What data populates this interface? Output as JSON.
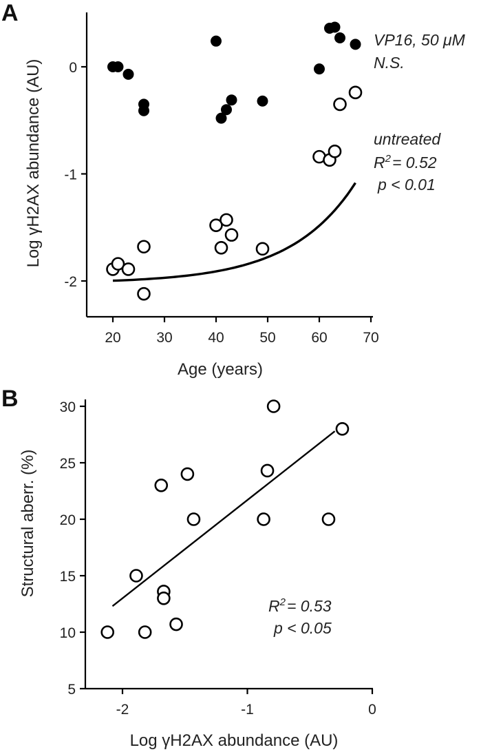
{
  "chart_data": [
    {
      "panel": "A",
      "type": "scatter",
      "xlabel": "Age (years)",
      "ylabel": "Log γH2AX abundance (AU)",
      "xlim": [
        15,
        70
      ],
      "ylim": [
        -2.35,
        0.5
      ],
      "xticks": [
        20,
        30,
        40,
        50,
        60,
        70
      ],
      "yticks": [
        0,
        -1,
        -2
      ],
      "series": [
        {
          "name": "VP16, 50 μM",
          "marker": "filled",
          "x": [
            20,
            21,
            23,
            26,
            26,
            40,
            41,
            42,
            43,
            49,
            60,
            62,
            63,
            64,
            67
          ],
          "y": [
            0.0,
            0.0,
            -0.07,
            -0.35,
            -0.41,
            0.24,
            -0.48,
            -0.4,
            -0.31,
            -0.32,
            -0.02,
            0.36,
            0.37,
            0.27,
            0.21
          ]
        },
        {
          "name": "untreated",
          "marker": "open",
          "x": [
            20,
            21,
            23,
            26,
            26,
            40,
            41,
            42,
            43,
            49,
            60,
            62,
            63,
            64,
            67
          ],
          "y": [
            -1.89,
            -1.84,
            -1.89,
            -1.68,
            -2.12,
            -1.48,
            -1.69,
            -1.43,
            -1.57,
            -1.7,
            -0.84,
            -0.87,
            -0.79,
            -0.35,
            -0.24
          ]
        }
      ],
      "fit": {
        "type": "exponential",
        "x": [
          20,
          67
        ],
        "a": -2.02,
        "b": 0.0223,
        "c": 0.0795
      },
      "annotations": {
        "vp16_label": "VP16, 50 μM",
        "vp16_sig": "N.S.",
        "untreated_label": "untreated",
        "r2": "= 0.52",
        "p": "p < 0.01"
      }
    },
    {
      "panel": "B",
      "type": "scatter",
      "xlabel": "Log γH2AX abundance (AU)",
      "ylabel": "Structural aberr. (%)",
      "xlim": [
        -2.3,
        0
      ],
      "ylim": [
        5,
        30
      ],
      "xticks": [
        -2,
        -1,
        0
      ],
      "yticks": [
        5,
        10,
        15,
        20,
        25,
        30
      ],
      "series": [
        {
          "name": "untreated",
          "marker": "open",
          "x": [
            -2.12,
            -1.89,
            -1.82,
            -1.69,
            -1.67,
            -1.67,
            -1.57,
            -1.48,
            -1.43,
            -0.87,
            -0.84,
            -0.79,
            -0.35,
            -0.24
          ],
          "y": [
            10,
            15,
            10,
            23,
            13.6,
            13,
            10.7,
            24,
            20,
            20,
            24.3,
            30,
            20,
            28
          ]
        }
      ],
      "fit": {
        "type": "linear",
        "x": [
          -2.08,
          -0.3
        ],
        "slope": 8.7,
        "intercept": 30.4
      },
      "annotations": {
        "r2": "= 0.53",
        "p": "p < 0.05"
      }
    }
  ],
  "panels": {
    "a_label": "A",
    "b_label": "B"
  },
  "annot_common": {
    "r_letter": "R",
    "sup_two": "2"
  }
}
